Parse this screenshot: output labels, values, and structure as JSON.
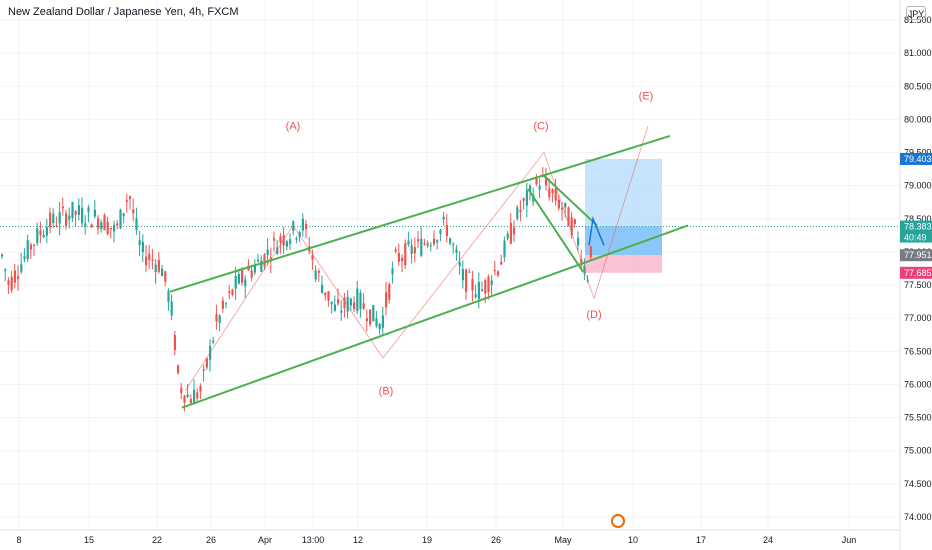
{
  "header": {
    "title": "New Zealand Dollar / Japanese Yen, 4h, FXCM",
    "currency_button": "JPY"
  },
  "colors": {
    "up": "#26a69a",
    "down": "#ef5350",
    "channel": "#4caf50",
    "wave": "#ef5350",
    "target": "#bbdefb",
    "stop": "#f8bbd0",
    "price_tag": "#26a69a",
    "target_tag": "#1976d2",
    "stop_tag": "#ec407a",
    "entry_tag": "#787b86"
  },
  "chart_data": {
    "type": "candlestick",
    "ylim": [
      73.8,
      81.8
    ],
    "y_ticks": [
      "81.500",
      "81.000",
      "80.500",
      "80.000",
      "79.500",
      "79.000",
      "78.500",
      "78.000",
      "77.500",
      "77.000",
      "76.500",
      "76.000",
      "75.500",
      "75.000",
      "74.500",
      "74.000"
    ],
    "x_ticks": [
      "8",
      "15",
      "22",
      "26",
      "Apr",
      "13:00",
      "12",
      "19",
      "26",
      "May",
      "10",
      "17",
      "24",
      "Jun"
    ],
    "annotations": [
      {
        "label": "(A)",
        "price": 79.85
      },
      {
        "label": "(B)",
        "price": 75.85
      },
      {
        "label": "(C)",
        "price": 79.85
      },
      {
        "label": "(D)",
        "price": 77.0
      },
      {
        "label": "(E)",
        "price": 80.3
      }
    ],
    "wave_path": [
      {
        "point": "start",
        "price": 75.9
      },
      {
        "point": "A",
        "price": 78.4
      },
      {
        "point": "B",
        "price": 76.4
      },
      {
        "point": "C",
        "price": 79.5
      },
      {
        "point": "D",
        "price": 77.3
      },
      {
        "point": "E",
        "price": 79.9
      }
    ],
    "channel": {
      "upper": [
        [
          170,
          77.4
        ],
        [
          670,
          79.75
        ]
      ],
      "lower": [
        [
          182,
          75.65
        ],
        [
          688,
          78.4
        ]
      ]
    },
    "position": {
      "target": 79.403,
      "entry": 77.951,
      "stop": 77.685
    },
    "price_tags": [
      {
        "name": "target",
        "value": "79.403"
      },
      {
        "name": "current",
        "value": "78.383",
        "sub": "40:49"
      },
      {
        "name": "entry",
        "value": "77.951"
      },
      {
        "name": "stop",
        "value": "77.685"
      }
    ],
    "grid": true,
    "legend": "none"
  }
}
